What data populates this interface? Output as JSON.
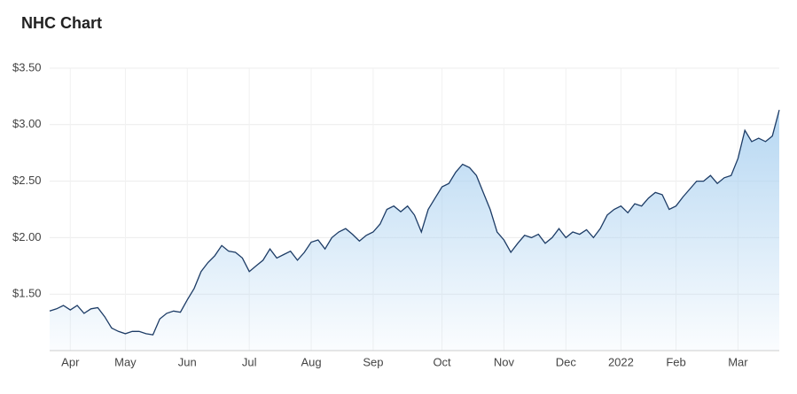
{
  "chart_data": {
    "type": "area",
    "title": "NHC Chart",
    "categories": [
      null,
      null,
      null,
      "Apr",
      null,
      null,
      null,
      null,
      null,
      null,
      null,
      "May",
      null,
      null,
      null,
      null,
      null,
      null,
      null,
      null,
      "Jun",
      null,
      null,
      null,
      null,
      null,
      null,
      null,
      null,
      "Jul",
      null,
      null,
      null,
      null,
      null,
      null,
      null,
      null,
      "Aug",
      null,
      null,
      null,
      null,
      null,
      null,
      null,
      null,
      "Sep",
      null,
      null,
      null,
      null,
      null,
      null,
      null,
      null,
      null,
      "Oct",
      null,
      null,
      null,
      null,
      null,
      null,
      null,
      null,
      "Nov",
      null,
      null,
      null,
      null,
      null,
      null,
      null,
      null,
      "Dec",
      null,
      null,
      null,
      null,
      null,
      null,
      null,
      "2022",
      null,
      null,
      null,
      null,
      null,
      null,
      null,
      "Feb",
      null,
      null,
      null,
      null,
      null,
      null,
      null,
      null,
      "Mar",
      null,
      null,
      null,
      null,
      null,
      null
    ],
    "values": [
      1.35,
      1.37,
      1.4,
      1.36,
      1.4,
      1.33,
      1.37,
      1.38,
      1.3,
      1.2,
      1.17,
      1.15,
      1.17,
      1.17,
      1.15,
      1.14,
      1.28,
      1.33,
      1.35,
      1.34,
      1.45,
      1.55,
      1.7,
      1.78,
      1.84,
      1.93,
      1.88,
      1.87,
      1.82,
      1.7,
      1.75,
      1.8,
      1.9,
      1.82,
      1.85,
      1.88,
      1.8,
      1.87,
      1.96,
      1.98,
      1.9,
      2.0,
      2.05,
      2.08,
      2.03,
      1.97,
      2.02,
      2.05,
      2.12,
      2.25,
      2.28,
      2.23,
      2.28,
      2.2,
      2.05,
      2.25,
      2.35,
      2.45,
      2.48,
      2.58,
      2.65,
      2.62,
      2.55,
      2.4,
      2.25,
      2.05,
      1.98,
      1.87,
      1.95,
      2.02,
      2.0,
      2.03,
      1.95,
      2.0,
      2.08,
      2.0,
      2.05,
      2.03,
      2.07,
      2.0,
      2.08,
      2.2,
      2.25,
      2.28,
      2.22,
      2.3,
      2.28,
      2.35,
      2.4,
      2.38,
      2.25,
      2.28,
      2.36,
      2.43,
      2.5,
      2.5,
      2.55,
      2.48,
      2.53,
      2.55,
      2.7,
      2.95,
      2.85,
      2.88,
      2.85,
      2.9,
      3.13
    ],
    "color": "#1d3c66",
    "fill_color": "#a9d0f0",
    "ylim": [
      1.0,
      3.5
    ],
    "yticks": [
      {
        "value": 1.5,
        "label": "$1.50"
      },
      {
        "value": 2.0,
        "label": "$2.00"
      },
      {
        "value": 2.5,
        "label": "$2.50"
      },
      {
        "value": 3.0,
        "label": "$3.00"
      },
      {
        "value": 3.5,
        "label": "$3.50"
      }
    ],
    "grid": true
  }
}
